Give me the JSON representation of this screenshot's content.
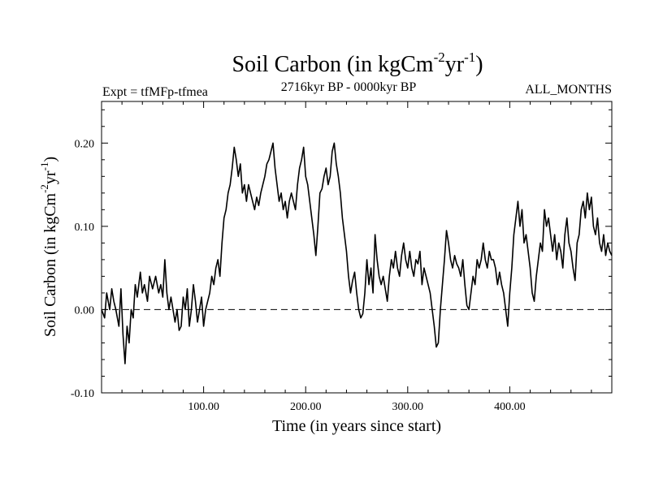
{
  "chart_data": {
    "type": "line",
    "title": "Soil Carbon (in kgCm",
    "title_sup1": "-2",
    "title_mid": "yr",
    "title_sup2": "-1",
    "title_end": ")",
    "subtitle_left": "Expt = tfMFp-tfmea",
    "subtitle_center": "2716kyr BP - 0000kyr BP",
    "subtitle_right": "ALL_MONTHS",
    "xlabel": "Time (in years since start)",
    "ylabel": "Soil Carbon (in kgCm",
    "ylabel_sup1": "-2",
    "ylabel_mid": "yr",
    "ylabel_sup2": "-1",
    "ylabel_end": ")",
    "xlim": [
      0,
      500
    ],
    "ylim": [
      -0.1,
      0.25
    ],
    "x_ticks": [
      100,
      200,
      300,
      400
    ],
    "x_tick_labels": [
      "100.00",
      "200.00",
      "300.00",
      "400.00"
    ],
    "y_ticks": [
      -0.1,
      0.0,
      0.1,
      0.2
    ],
    "y_tick_labels": [
      "-0.10",
      "0.00",
      "0.10",
      "0.20"
    ],
    "reference_line": {
      "y": 0.0,
      "style": "dashed"
    },
    "series": [
      {
        "name": "Soil Carbon",
        "color": "#000000",
        "points": [
          [
            0,
            0.0
          ],
          [
            3,
            -0.01
          ],
          [
            5,
            0.02
          ],
          [
            8,
            0.0
          ],
          [
            10,
            0.025
          ],
          [
            12,
            0.01
          ],
          [
            14,
            0.0
          ],
          [
            17,
            -0.02
          ],
          [
            19,
            0.025
          ],
          [
            21,
            -0.03
          ],
          [
            23,
            -0.065
          ],
          [
            25,
            -0.02
          ],
          [
            27,
            -0.04
          ],
          [
            29,
            0.0
          ],
          [
            31,
            -0.01
          ],
          [
            33,
            0.03
          ],
          [
            35,
            0.015
          ],
          [
            38,
            0.045
          ],
          [
            40,
            0.02
          ],
          [
            42,
            0.03
          ],
          [
            45,
            0.01
          ],
          [
            47,
            0.04
          ],
          [
            50,
            0.025
          ],
          [
            53,
            0.04
          ],
          [
            56,
            0.02
          ],
          [
            58,
            0.03
          ],
          [
            60,
            0.015
          ],
          [
            62,
            0.06
          ],
          [
            64,
            0.02
          ],
          [
            66,
            0.0
          ],
          [
            68,
            0.015
          ],
          [
            70,
            0.0
          ],
          [
            72,
            -0.015
          ],
          [
            74,
            0.0
          ],
          [
            76,
            -0.025
          ],
          [
            78,
            -0.02
          ],
          [
            80,
            0.015
          ],
          [
            82,
            0.0
          ],
          [
            84,
            0.025
          ],
          [
            86,
            -0.02
          ],
          [
            88,
            0.0
          ],
          [
            90,
            0.03
          ],
          [
            92,
            0.01
          ],
          [
            94,
            -0.015
          ],
          [
            96,
            0.0
          ],
          [
            98,
            0.015
          ],
          [
            100,
            -0.02
          ],
          [
            102,
            0.0
          ],
          [
            104,
            0.01
          ],
          [
            106,
            0.02
          ],
          [
            108,
            0.04
          ],
          [
            110,
            0.03
          ],
          [
            112,
            0.05
          ],
          [
            114,
            0.06
          ],
          [
            116,
            0.04
          ],
          [
            118,
            0.08
          ],
          [
            120,
            0.11
          ],
          [
            122,
            0.12
          ],
          [
            124,
            0.14
          ],
          [
            126,
            0.15
          ],
          [
            128,
            0.17
          ],
          [
            130,
            0.195
          ],
          [
            132,
            0.18
          ],
          [
            134,
            0.16
          ],
          [
            136,
            0.175
          ],
          [
            138,
            0.14
          ],
          [
            140,
            0.15
          ],
          [
            142,
            0.13
          ],
          [
            144,
            0.15
          ],
          [
            146,
            0.14
          ],
          [
            148,
            0.13
          ],
          [
            150,
            0.12
          ],
          [
            152,
            0.135
          ],
          [
            154,
            0.125
          ],
          [
            156,
            0.14
          ],
          [
            158,
            0.15
          ],
          [
            160,
            0.16
          ],
          [
            162,
            0.175
          ],
          [
            164,
            0.18
          ],
          [
            166,
            0.19
          ],
          [
            168,
            0.2
          ],
          [
            170,
            0.17
          ],
          [
            172,
            0.15
          ],
          [
            174,
            0.13
          ],
          [
            176,
            0.14
          ],
          [
            178,
            0.12
          ],
          [
            180,
            0.13
          ],
          [
            182,
            0.11
          ],
          [
            184,
            0.13
          ],
          [
            186,
            0.14
          ],
          [
            188,
            0.13
          ],
          [
            190,
            0.12
          ],
          [
            192,
            0.15
          ],
          [
            194,
            0.17
          ],
          [
            196,
            0.18
          ],
          [
            198,
            0.195
          ],
          [
            200,
            0.16
          ],
          [
            202,
            0.15
          ],
          [
            204,
            0.13
          ],
          [
            206,
            0.11
          ],
          [
            208,
            0.09
          ],
          [
            210,
            0.065
          ],
          [
            212,
            0.1
          ],
          [
            214,
            0.14
          ],
          [
            216,
            0.145
          ],
          [
            218,
            0.16
          ],
          [
            220,
            0.17
          ],
          [
            222,
            0.15
          ],
          [
            224,
            0.16
          ],
          [
            226,
            0.19
          ],
          [
            228,
            0.2
          ],
          [
            230,
            0.175
          ],
          [
            232,
            0.16
          ],
          [
            234,
            0.14
          ],
          [
            236,
            0.11
          ],
          [
            238,
            0.09
          ],
          [
            240,
            0.07
          ],
          [
            242,
            0.04
          ],
          [
            244,
            0.02
          ],
          [
            246,
            0.035
          ],
          [
            248,
            0.045
          ],
          [
            250,
            0.02
          ],
          [
            252,
            0.0
          ],
          [
            254,
            -0.01
          ],
          [
            256,
            -0.005
          ],
          [
            258,
            0.02
          ],
          [
            260,
            0.06
          ],
          [
            262,
            0.03
          ],
          [
            264,
            0.05
          ],
          [
            266,
            0.02
          ],
          [
            268,
            0.09
          ],
          [
            270,
            0.06
          ],
          [
            272,
            0.04
          ],
          [
            274,
            0.03
          ],
          [
            276,
            0.04
          ],
          [
            278,
            0.025
          ],
          [
            280,
            0.01
          ],
          [
            282,
            0.04
          ],
          [
            284,
            0.06
          ],
          [
            286,
            0.05
          ],
          [
            288,
            0.07
          ],
          [
            290,
            0.05
          ],
          [
            292,
            0.04
          ],
          [
            294,
            0.065
          ],
          [
            296,
            0.08
          ],
          [
            298,
            0.06
          ],
          [
            300,
            0.05
          ],
          [
            302,
            0.07
          ],
          [
            304,
            0.05
          ],
          [
            306,
            0.04
          ],
          [
            308,
            0.06
          ],
          [
            310,
            0.055
          ],
          [
            312,
            0.07
          ],
          [
            314,
            0.03
          ],
          [
            316,
            0.05
          ],
          [
            318,
            0.04
          ],
          [
            320,
            0.03
          ],
          [
            322,
            0.02
          ],
          [
            324,
            0.0
          ],
          [
            326,
            -0.02
          ],
          [
            328,
            -0.045
          ],
          [
            330,
            -0.04
          ],
          [
            332,
            0.0
          ],
          [
            334,
            0.03
          ],
          [
            336,
            0.06
          ],
          [
            338,
            0.095
          ],
          [
            340,
            0.08
          ],
          [
            342,
            0.06
          ],
          [
            344,
            0.05
          ],
          [
            346,
            0.065
          ],
          [
            348,
            0.055
          ],
          [
            350,
            0.05
          ],
          [
            352,
            0.04
          ],
          [
            354,
            0.06
          ],
          [
            356,
            0.03
          ],
          [
            358,
            0.005
          ],
          [
            360,
            0.0
          ],
          [
            362,
            0.02
          ],
          [
            364,
            0.04
          ],
          [
            366,
            0.03
          ],
          [
            368,
            0.06
          ],
          [
            370,
            0.05
          ],
          [
            372,
            0.06
          ],
          [
            374,
            0.08
          ],
          [
            376,
            0.06
          ],
          [
            378,
            0.05
          ],
          [
            380,
            0.07
          ],
          [
            382,
            0.06
          ],
          [
            384,
            0.06
          ],
          [
            386,
            0.05
          ],
          [
            388,
            0.03
          ],
          [
            390,
            0.045
          ],
          [
            392,
            0.03
          ],
          [
            394,
            0.02
          ],
          [
            396,
            0.0
          ],
          [
            398,
            -0.02
          ],
          [
            400,
            0.02
          ],
          [
            402,
            0.05
          ],
          [
            404,
            0.09
          ],
          [
            406,
            0.11
          ],
          [
            408,
            0.13
          ],
          [
            410,
            0.1
          ],
          [
            412,
            0.12
          ],
          [
            414,
            0.08
          ],
          [
            416,
            0.09
          ],
          [
            418,
            0.07
          ],
          [
            420,
            0.05
          ],
          [
            422,
            0.02
          ],
          [
            424,
            0.01
          ],
          [
            426,
            0.04
          ],
          [
            428,
            0.06
          ],
          [
            430,
            0.08
          ],
          [
            432,
            0.07
          ],
          [
            434,
            0.12
          ],
          [
            436,
            0.1
          ],
          [
            438,
            0.11
          ],
          [
            440,
            0.09
          ],
          [
            442,
            0.07
          ],
          [
            444,
            0.09
          ],
          [
            446,
            0.06
          ],
          [
            448,
            0.08
          ],
          [
            450,
            0.07
          ],
          [
            452,
            0.05
          ],
          [
            454,
            0.09
          ],
          [
            456,
            0.11
          ],
          [
            458,
            0.08
          ],
          [
            460,
            0.07
          ],
          [
            462,
            0.05
          ],
          [
            464,
            0.035
          ],
          [
            466,
            0.08
          ],
          [
            468,
            0.09
          ],
          [
            470,
            0.12
          ],
          [
            472,
            0.13
          ],
          [
            474,
            0.11
          ],
          [
            476,
            0.14
          ],
          [
            478,
            0.12
          ],
          [
            480,
            0.135
          ],
          [
            482,
            0.1
          ],
          [
            484,
            0.09
          ],
          [
            486,
            0.11
          ],
          [
            488,
            0.08
          ],
          [
            490,
            0.07
          ],
          [
            492,
            0.09
          ],
          [
            494,
            0.065
          ],
          [
            496,
            0.08
          ],
          [
            498,
            0.07
          ],
          [
            500,
            0.065
          ]
        ]
      }
    ]
  }
}
